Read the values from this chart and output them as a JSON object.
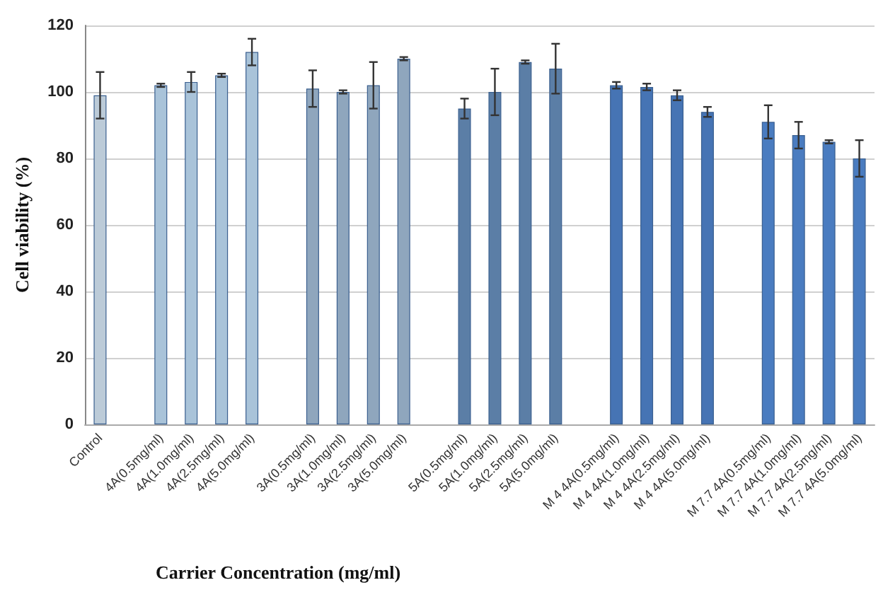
{
  "chart_data": {
    "type": "bar",
    "xlabel": "Carrier Concentration (mg/ml)",
    "ylabel": "Cell viability (%)",
    "categories": [
      "Control",
      null,
      "4A(0.5mg/ml)",
      "4A(1.0mg/ml)",
      "4A(2.5mg/ml)",
      "4A(5.0mg/ml)",
      null,
      "3A(0.5mg/ml)",
      "3A(1.0mg/ml)",
      "3A(2.5mg/ml)",
      "3A(5.0mg/ml)",
      null,
      "5A(0.5mg/ml)",
      "5A(1.0mg/ml)",
      "5A(2.5mg/ml)",
      "5A(5.0mg/ml)",
      null,
      "M 4 4A(0.5mg/ml)",
      "M 4 4A(1.0mg/ml)",
      "M 4 4A(2.5mg/ml)",
      "M 4 4A(5.0mg/ml)",
      null,
      "M 7.7 4A(0.5mg/ml)",
      "M 7.7 4A(1.0mg/ml)",
      "M 7.7 4A(2.5mg/ml)",
      "M 7.7 4A(5.0mg/ml)"
    ],
    "values": [
      99,
      null,
      102,
      103,
      105,
      112,
      null,
      101,
      100,
      102,
      110,
      null,
      95,
      100,
      109,
      107,
      null,
      102,
      101.5,
      99,
      94,
      null,
      91,
      87,
      85,
      80
    ],
    "errors": [
      7,
      null,
      0.5,
      3,
      0.5,
      4,
      null,
      5.5,
      0.5,
      7,
      0.5,
      null,
      3,
      7,
      0.5,
      7.5,
      null,
      1,
      1,
      1.5,
      1.5,
      null,
      5,
      4,
      0.5,
      5.5
    ],
    "colors": [
      "#bccbd8",
      null,
      "#a9c3d9",
      "#a9c3d9",
      "#a9c3d9",
      "#a9c3d9",
      null,
      "#8fa6bd",
      "#8fa6bd",
      "#8fa6bd",
      "#8fa6bd",
      null,
      "#5b7ea6",
      "#5b7ea6",
      "#5b7ea6",
      "#5b7ea6",
      null,
      "#4674b4",
      "#4674b4",
      "#4674b4",
      "#4674b4",
      null,
      "#4a7cc0",
      "#4a7cc0",
      "#4a7cc0",
      "#4a7cc0"
    ],
    "ylim": [
      0,
      120
    ],
    "yticks": [
      0,
      20,
      40,
      60,
      80,
      100,
      120
    ],
    "grid": "y"
  }
}
